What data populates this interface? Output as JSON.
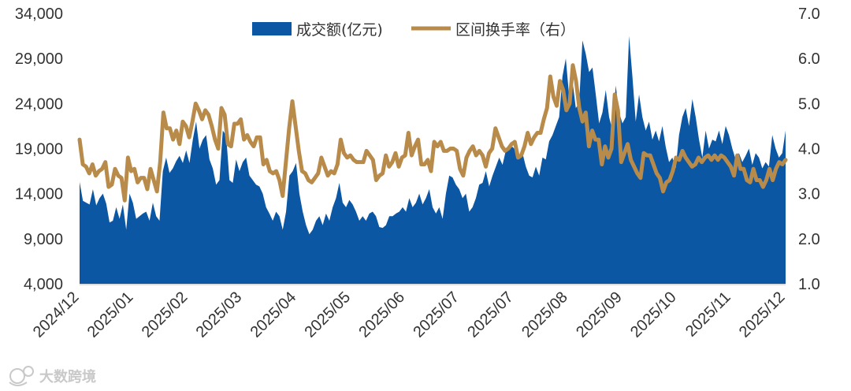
{
  "colors": {
    "volume": "#0b57a4",
    "turnover": "#b88b4a",
    "watermark": "#c9c9c9"
  },
  "watermark": {
    "icon": "dashu-logo-icon",
    "text": "大数跨境"
  },
  "chart_data": {
    "type": "area+line",
    "title": "",
    "legend": [
      "成交额(亿元)",
      "区间换手率（右）"
    ],
    "legend_position": "top-center",
    "left_axis": {
      "min": 4000,
      "max": 34000,
      "ticks": [
        "34,000",
        "29,000",
        "24,000",
        "19,000",
        "14,000",
        "9,000",
        "4,000"
      ]
    },
    "right_axis": {
      "min": 1.0,
      "max": 7.0,
      "ticks": [
        "7.0",
        "6.0",
        "5.0",
        "4.0",
        "3.0",
        "2.0",
        "1.0"
      ]
    },
    "x_tick_labels": [
      "2024/12",
      "2025/01",
      "2025/02",
      "2025/03",
      "2025/04",
      "2025/05",
      "2025/06",
      "2025/07",
      "2025/07",
      "2025/08",
      "2025/09",
      "2025/10",
      "2025/11",
      "2025/12"
    ],
    "series": [
      {
        "name": "成交额(亿元)",
        "type": "area",
        "axis": "left",
        "values": [
          15300,
          13200,
          13000,
          12800,
          14500,
          12700,
          13500,
          14000,
          12900,
          10800,
          11000,
          12500,
          11200,
          12800,
          10000,
          14000,
          13000,
          11200,
          11500,
          11800,
          12000,
          11000,
          13000,
          11500,
          11000,
          16500,
          18000,
          16300,
          16800,
          17600,
          18200,
          17400,
          18800,
          17400,
          20000,
          22000,
          19000,
          20000,
          20500,
          17800,
          16800,
          15000,
          15500,
          21000,
          20500,
          15500,
          15200,
          17800,
          16500,
          17500,
          18000,
          16000,
          15500,
          15000,
          14800,
          14000,
          12500,
          11800,
          11000,
          12000,
          11500,
          10000,
          12000,
          16000,
          16500,
          17400,
          14000,
          12000,
          10500,
          9500,
          10000,
          11000,
          11500,
          10500,
          11800,
          11000,
          12500,
          13500,
          15200,
          13000,
          12500,
          13300,
          12800,
          12000,
          11000,
          11500,
          11000,
          11800,
          12000,
          11500,
          10300,
          10200,
          10500,
          11500,
          11500,
          11800,
          12000,
          12500,
          12000,
          13500,
          12500,
          13000,
          14000,
          12800,
          13500,
          14500,
          12500,
          11800,
          12500,
          11200,
          14000,
          16000,
          15800,
          15000,
          14500,
          13500,
          14000,
          12000,
          12500,
          13500,
          15000,
          15200,
          16500,
          14800,
          16000,
          17000,
          18000,
          17200,
          18800,
          19000,
          19200,
          18800,
          18300,
          18500,
          17000,
          16000,
          15800,
          17000,
          16000,
          18000,
          17800,
          19800,
          20500,
          21500,
          22500,
          27000,
          29000,
          24800,
          26500,
          23500,
          24000,
          31000,
          29500,
          27500,
          28000,
          25000,
          21800,
          23000,
          25500,
          22500,
          21000,
          26000,
          23000,
          21800,
          22500,
          31500,
          27000,
          22000,
          25000,
          22500,
          21000,
          22000,
          20000,
          21000,
          19800,
          21500,
          19200,
          17500,
          18000,
          16800,
          20500,
          22500,
          23500,
          21500,
          24500,
          22500,
          20000,
          18000,
          21000,
          19000,
          20000,
          19800,
          21000,
          19500,
          21500,
          20500,
          19000,
          17800,
          18500,
          17500,
          18200,
          19000,
          17200,
          18500,
          18000,
          16800,
          17500,
          17000,
          20500,
          19000,
          18000,
          18500,
          21000
        ]
      },
      {
        "name": "区间换手率（右）",
        "type": "line",
        "axis": "right",
        "values": [
          4.2,
          3.65,
          3.6,
          3.45,
          3.65,
          3.4,
          3.5,
          3.55,
          3.7,
          3.15,
          3.2,
          3.55,
          3.4,
          3.35,
          2.85,
          3.8,
          3.5,
          3.55,
          3.25,
          3.35,
          3.35,
          3.1,
          3.55,
          3.3,
          3.05,
          3.7,
          4.8,
          4.45,
          4.45,
          4.2,
          4.4,
          4.1,
          4.6,
          4.5,
          4.25,
          4.6,
          5.0,
          4.85,
          4.65,
          4.85,
          4.75,
          4.5,
          4.2,
          4.0,
          4.9,
          4.75,
          4.1,
          4.05,
          4.55,
          4.55,
          4.65,
          4.2,
          4.3,
          4.15,
          4.05,
          4.25,
          4.25,
          3.65,
          3.75,
          3.5,
          3.45,
          3.5,
          3.3,
          2.95,
          3.7,
          4.45,
          5.05,
          4.5,
          3.95,
          3.5,
          3.45,
          3.3,
          3.25,
          3.35,
          3.45,
          3.8,
          3.6,
          3.4,
          3.5,
          3.45,
          3.65,
          4.2,
          3.9,
          3.8,
          3.85,
          3.75,
          3.7,
          3.7,
          3.7,
          3.95,
          3.85,
          3.75,
          3.3,
          3.4,
          3.45,
          3.85,
          3.6,
          3.7,
          3.9,
          3.6,
          3.8,
          3.85,
          4.35,
          3.85,
          4.05,
          4.2,
          3.65,
          3.65,
          3.75,
          3.5,
          4.15,
          4.05,
          4.15,
          3.95,
          3.95,
          4.0,
          4.0,
          3.95,
          3.55,
          3.4,
          3.8,
          3.95,
          4.05,
          3.85,
          3.95,
          3.85,
          3.6,
          3.9,
          4.0,
          4.45,
          4.25,
          4.05,
          3.95,
          4.0,
          4.1,
          4.15,
          3.8,
          3.85,
          4.05,
          4.35,
          4.1,
          4.25,
          4.35,
          4.35,
          4.65,
          4.9,
          5.6,
          5.15,
          4.95,
          5.5,
          5.3,
          4.85,
          5.0,
          5.85,
          5.5,
          4.9,
          4.6,
          4.8,
          4.05,
          4.4,
          4.2,
          4.2,
          3.65,
          4.05,
          3.8,
          4.0,
          5.2,
          4.85,
          3.7,
          3.9,
          4.1,
          3.75,
          3.6,
          3.45,
          3.35,
          3.9,
          3.85,
          3.85,
          3.65,
          3.45,
          3.35,
          3.05,
          3.25,
          3.3,
          3.5,
          3.8,
          3.75,
          3.95,
          3.8,
          3.7,
          3.6,
          3.65,
          3.8,
          3.7,
          3.8,
          3.85,
          3.75,
          3.85,
          3.75,
          3.85,
          3.8,
          3.7,
          3.6,
          3.4,
          3.85,
          3.55,
          3.55,
          3.3,
          3.25,
          3.55,
          3.3,
          3.3,
          3.15,
          3.3,
          3.55,
          3.3,
          3.55,
          3.7,
          3.65,
          3.75
        ]
      }
    ]
  }
}
